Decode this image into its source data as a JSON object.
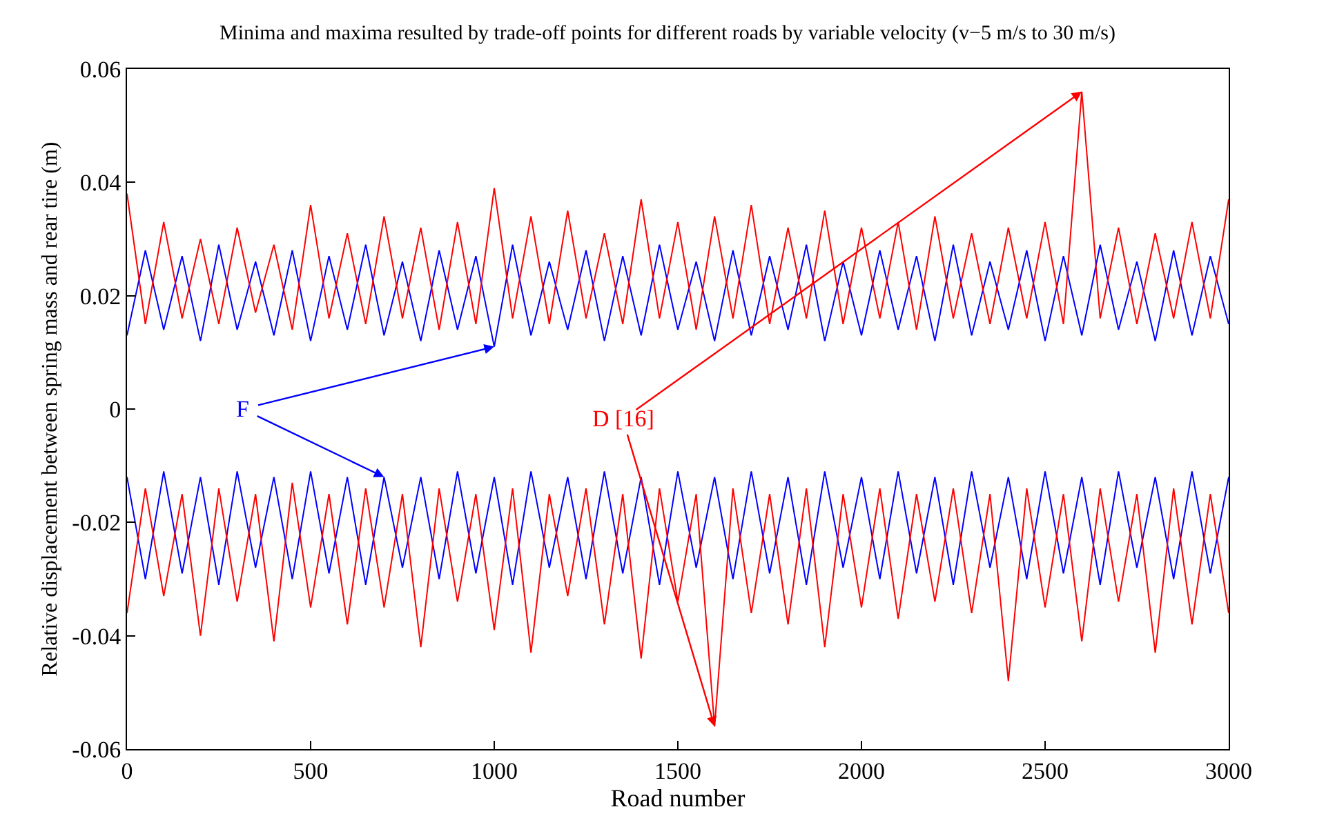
{
  "chart_data": {
    "type": "line",
    "title": "Minima and maxima resulted by trade-off points for different roads by variable velocity (v−5 m/s to 30 m/s)",
    "xlabel": "Road number",
    "ylabel": "Relative displacement between spring mass and rear tire (m)",
    "x": [
      0,
      50,
      100,
      150,
      200,
      250,
      300,
      350,
      400,
      450,
      500,
      550,
      600,
      650,
      700,
      750,
      800,
      850,
      900,
      950,
      1000,
      1050,
      1100,
      1150,
      1200,
      1250,
      1300,
      1350,
      1400,
      1450,
      1500,
      1550,
      1600,
      1650,
      1700,
      1750,
      1800,
      1850,
      1900,
      1950,
      2000,
      2050,
      2100,
      2150,
      2200,
      2250,
      2300,
      2350,
      2400,
      2450,
      2500,
      2550,
      2600,
      2650,
      2700,
      2750,
      2800,
      2850,
      2900,
      2950,
      3000
    ],
    "series": [
      {
        "name": "F",
        "color": "#0000ff",
        "values": [
          0.013,
          0.028,
          0.014,
          0.027,
          0.012,
          0.029,
          0.014,
          0.026,
          0.013,
          0.028,
          0.012,
          0.027,
          0.014,
          0.029,
          0.013,
          0.026,
          0.012,
          0.028,
          0.014,
          0.027,
          0.011,
          0.029,
          0.013,
          0.026,
          0.014,
          0.028,
          0.012,
          0.027,
          0.013,
          0.029,
          0.014,
          0.026,
          0.012,
          0.028,
          0.013,
          0.027,
          0.014,
          0.029,
          0.012,
          0.026,
          0.013,
          0.028,
          0.014,
          0.027,
          0.012,
          0.029,
          0.013,
          0.026,
          0.014,
          0.028,
          0.012,
          0.027,
          0.013,
          0.029,
          0.014,
          0.026,
          0.012,
          0.028,
          0.013,
          0.027,
          0.015
        ]
      },
      {
        "color": "#0000ff",
        "values": [
          -0.012,
          -0.03,
          -0.011,
          -0.029,
          -0.012,
          -0.031,
          -0.011,
          -0.028,
          -0.012,
          -0.03,
          -0.011,
          -0.029,
          -0.012,
          -0.031,
          -0.012,
          -0.028,
          -0.012,
          -0.03,
          -0.011,
          -0.029,
          -0.012,
          -0.031,
          -0.011,
          -0.028,
          -0.012,
          -0.03,
          -0.011,
          -0.029,
          -0.012,
          -0.031,
          -0.011,
          -0.028,
          -0.012,
          -0.03,
          -0.011,
          -0.029,
          -0.012,
          -0.031,
          -0.011,
          -0.028,
          -0.012,
          -0.03,
          -0.011,
          -0.029,
          -0.012,
          -0.031,
          -0.011,
          -0.028,
          -0.012,
          -0.03,
          -0.011,
          -0.029,
          -0.012,
          -0.031,
          -0.011,
          -0.028,
          -0.012,
          -0.03,
          -0.011,
          -0.029,
          -0.012
        ]
      },
      {
        "name": "D [16]",
        "color": "#ff0000",
        "values": [
          0.038,
          0.015,
          0.033,
          0.016,
          0.03,
          0.015,
          0.032,
          0.017,
          0.029,
          0.014,
          0.036,
          0.016,
          0.031,
          0.015,
          0.034,
          0.016,
          0.032,
          0.014,
          0.033,
          0.015,
          0.039,
          0.016,
          0.034,
          0.015,
          0.035,
          0.016,
          0.031,
          0.015,
          0.037,
          0.016,
          0.033,
          0.014,
          0.034,
          0.016,
          0.036,
          0.015,
          0.032,
          0.016,
          0.035,
          0.015,
          0.032,
          0.016,
          0.033,
          0.014,
          0.034,
          0.016,
          0.031,
          0.015,
          0.032,
          0.016,
          0.033,
          0.015,
          0.056,
          0.016,
          0.032,
          0.015,
          0.031,
          0.016,
          0.033,
          0.016,
          0.037
        ]
      },
      {
        "color": "#ff0000",
        "values": [
          -0.036,
          -0.014,
          -0.033,
          -0.015,
          -0.04,
          -0.014,
          -0.034,
          -0.015,
          -0.041,
          -0.013,
          -0.035,
          -0.015,
          -0.038,
          -0.014,
          -0.035,
          -0.015,
          -0.042,
          -0.014,
          -0.034,
          -0.015,
          -0.039,
          -0.014,
          -0.043,
          -0.015,
          -0.033,
          -0.014,
          -0.038,
          -0.015,
          -0.044,
          -0.014,
          -0.034,
          -0.015,
          -0.056,
          -0.014,
          -0.036,
          -0.015,
          -0.038,
          -0.014,
          -0.042,
          -0.015,
          -0.035,
          -0.014,
          -0.037,
          -0.015,
          -0.034,
          -0.014,
          -0.036,
          -0.015,
          -0.048,
          -0.014,
          -0.035,
          -0.015,
          -0.041,
          -0.014,
          -0.034,
          -0.015,
          -0.043,
          -0.014,
          -0.038,
          -0.015,
          -0.036
        ]
      }
    ],
    "xlim": [
      0,
      3000
    ],
    "xticks": [
      0,
      500,
      1000,
      1500,
      2000,
      2500,
      3000
    ],
    "ylim": [
      -0.06,
      0.06
    ],
    "yticks": [
      -0.06,
      -0.04,
      -0.02,
      0,
      0.02,
      0.04,
      0.06
    ],
    "grid": false,
    "legend": false,
    "marker": "none",
    "line_style": "solid"
  }
}
